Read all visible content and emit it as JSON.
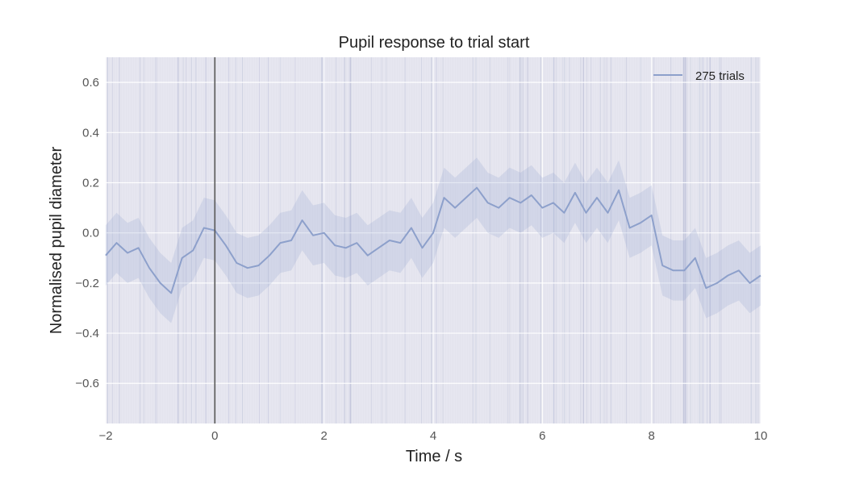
{
  "chart_data": {
    "type": "line",
    "title": "Pupil response to trial start",
    "xlabel": "Time / s",
    "ylabel": "Normalised pupil diameter",
    "xlim": [
      -2,
      10
    ],
    "ylim": [
      -0.76,
      0.7
    ],
    "xticks": [
      -2,
      0,
      2,
      4,
      6,
      8,
      10
    ],
    "yticks": [
      -0.6,
      -0.4,
      -0.2,
      0.0,
      0.2,
      0.4,
      0.6
    ],
    "xtick_labels": [
      "−2",
      "0",
      "2",
      "4",
      "6",
      "8",
      "10"
    ],
    "ytick_labels": [
      "−0.6",
      "−0.4",
      "−0.2",
      "0.0",
      "0.2",
      "0.4",
      "0.6"
    ],
    "grid": true,
    "legend_position": "top-right",
    "vertical_marker_x": 0,
    "colors": {
      "background": "#eaeaf2",
      "grid": "#ffffff",
      "mean_line": "#8da0cb",
      "band": "#8da0cb",
      "trials": "#8a94c0",
      "marker": "#555555"
    },
    "series": [
      {
        "name": "275 trials",
        "x": [
          -2.0,
          -1.8,
          -1.6,
          -1.4,
          -1.2,
          -1.0,
          -0.8,
          -0.6,
          -0.4,
          -0.2,
          0.0,
          0.2,
          0.4,
          0.6,
          0.8,
          1.0,
          1.2,
          1.4,
          1.6,
          1.8,
          2.0,
          2.2,
          2.4,
          2.6,
          2.8,
          3.0,
          3.2,
          3.4,
          3.6,
          3.8,
          4.0,
          4.2,
          4.4,
          4.6,
          4.8,
          5.0,
          5.2,
          5.4,
          5.6,
          5.8,
          6.0,
          6.2,
          6.4,
          6.6,
          6.8,
          7.0,
          7.2,
          7.4,
          7.6,
          7.8,
          8.0,
          8.2,
          8.4,
          8.6,
          8.8,
          9.0,
          9.2,
          9.4,
          9.6,
          9.8,
          10.0
        ],
        "y": [
          -0.09,
          -0.04,
          -0.08,
          -0.06,
          -0.14,
          -0.2,
          -0.24,
          -0.1,
          -0.07,
          0.02,
          0.01,
          -0.05,
          -0.12,
          -0.14,
          -0.13,
          -0.09,
          -0.04,
          -0.03,
          0.05,
          -0.01,
          0.0,
          -0.05,
          -0.06,
          -0.04,
          -0.09,
          -0.06,
          -0.03,
          -0.04,
          0.02,
          -0.06,
          0.0,
          0.14,
          0.1,
          0.14,
          0.18,
          0.12,
          0.1,
          0.14,
          0.12,
          0.15,
          0.1,
          0.12,
          0.08,
          0.16,
          0.08,
          0.14,
          0.08,
          0.17,
          0.02,
          0.04,
          0.07,
          -0.13,
          -0.15,
          -0.15,
          -0.1,
          -0.22,
          -0.2,
          -0.17,
          -0.15,
          -0.2,
          -0.17
        ],
        "band_halfwidth": 0.12
      }
    ]
  }
}
